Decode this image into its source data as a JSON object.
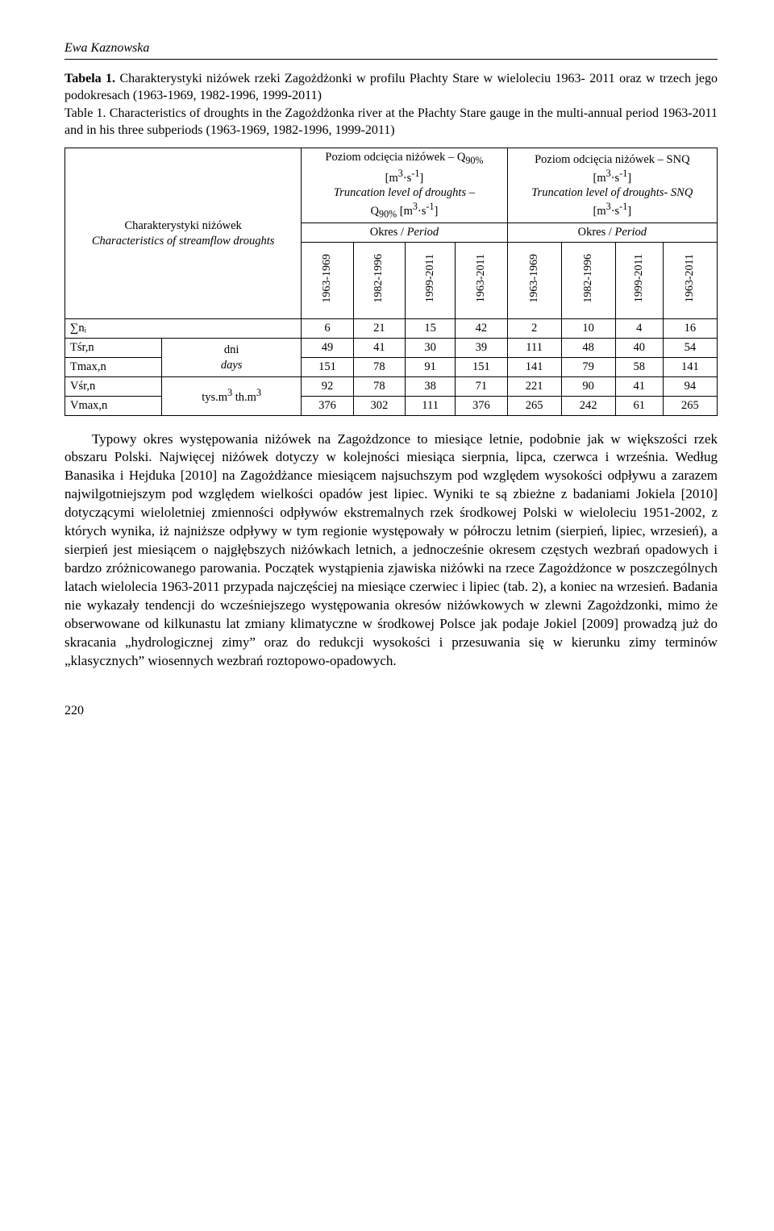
{
  "running_head": "Ewa Kaznowska",
  "caption_pl": {
    "label": "Tabela 1.",
    "text": " Charakterystyki niżówek rzeki Zagożdżonki w profilu Płachty Stare w wieloleciu 1963- 2011 oraz w trzech jego podokresach (1963-1969, 1982-1996, 1999-2011)"
  },
  "caption_en": {
    "label": "Table 1.",
    "text": " Characteristics of droughts in the Zagożdżonka river at the Płachty Stare gauge in the multi-annual period 1963-2011 and in his three subperiods (1963-1969, 1982-1996, 1999-2011)"
  },
  "table": {
    "row_header": {
      "line1": "Charakterystyki niżówek",
      "line2": "Characteristics of streamflow droughts"
    },
    "col_group_left": {
      "l1": "Poziom odcięcia niżówek – Q",
      "l1_sub": "90%",
      "l2": "[m",
      "l2_sup": "3",
      "l2_mid": "·s",
      "l2_sup2": "-1",
      "l2_end": "]",
      "l3_ital": "Truncation level of droughts –",
      "l4": "Q",
      "l4_sub": "90%",
      "l4_mid": " [m",
      "l4_sup": "3",
      "l4_mid2": "·s",
      "l4_sup2": "-1",
      "l4_end": "]"
    },
    "col_group_right": {
      "l1": "Poziom odcięcia niżówek – SNQ",
      "l2": "[m",
      "l2_sup": "3",
      "l2_mid": "·s",
      "l2_sup2": "-1",
      "l2_end": "]",
      "l3_ital": "Truncation level of droughts- SNQ",
      "l4": "[m",
      "l4_sup": "3",
      "l4_mid": "·s",
      "l4_sup2": "-1",
      "l4_end": "]"
    },
    "period_label_pl": "Okres",
    "period_label_sep": " / ",
    "period_label_en": "Period",
    "periods": [
      "1963-1969",
      "1982-1996",
      "1999-2011",
      "1963-2011",
      "1963-1969",
      "1982-1996",
      "1999-2011",
      "1963-2011"
    ],
    "rows": [
      {
        "label": "∑nᵢ",
        "unit": "",
        "rowspan_unit": 1,
        "values": [
          6,
          21,
          15,
          42,
          2,
          10,
          4,
          16
        ]
      },
      {
        "label": "Tśr,n",
        "unit_pl": "dni",
        "values": [
          49,
          41,
          30,
          39,
          111,
          48,
          40,
          54
        ]
      },
      {
        "label": "Tmax,n",
        "unit_en": "days",
        "values": [
          151,
          78,
          91,
          151,
          141,
          79,
          58,
          141
        ]
      },
      {
        "label": "Vśr,n",
        "unit_combined_1": "tys.m",
        "unit_sup1": "3",
        "unit_combined_2": " th.m",
        "unit_sup2": "3",
        "values": [
          92,
          78,
          38,
          71,
          221,
          90,
          41,
          94
        ]
      },
      {
        "label": "Vmax,n",
        "values": [
          376,
          302,
          111,
          376,
          265,
          242,
          61,
          265
        ]
      }
    ]
  },
  "body_paragraph": "Typowy okres występowania niżówek na Zagożdzonce to miesiące letnie, podobnie jak w większości rzek obszaru Polski. Najwięcej niżówek dotyczy w kolejności miesiąca sierpnia, lipca, czerwca i września. Według Banasika i Hejduka [2010] na Zagożdżance miesiącem najsuchszym pod względem wysokości odpływu a zarazem najwilgotniejszym pod względem wielkości opadów jest lipiec. Wyniki te są zbieżne z badaniami Jokiela [2010] dotyczącymi wieloletniej zmienności odpływów ekstremalnych rzek środkowej Polski w wieloleciu 1951-2002, z których wynika, iż najniższe odpływy w tym regionie występowały w półroczu letnim (sierpień, lipiec, wrzesień), a sierpień jest miesiącem o najgłębszych niżówkach letnich, a jednocześnie okresem częstych wezbrań opadowych i bardzo zróżnicowanego parowania. Początek wystąpienia zjawiska niżówki na rzece Zagożdżonce w poszczególnych latach wielolecia 1963-2011 przypada najczęściej na miesiące czerwiec i lipiec (tab. 2), a koniec na wrzesień. Badania nie wykazały tendencji do wcześniejszego występowania okresów niżówkowych w zlewni Zagożdzonki, mimo że obserwowane od kilkunastu lat zmiany klimatyczne w środkowej Polsce jak podaje Jokiel [2009] prowadzą już do skracania „hydrologicznej zimy” oraz do redukcji wysokości i przesuwania się w kierunku zimy terminów „klasycznych” wiosennych wezbrań roztopowo-opadowych.",
  "page_number": "220"
}
